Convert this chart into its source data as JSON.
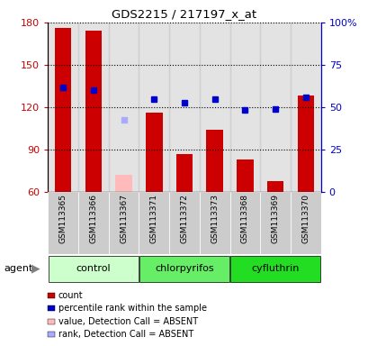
{
  "title": "GDS2215 / 217197_x_at",
  "samples": [
    "GSM113365",
    "GSM113366",
    "GSM113367",
    "GSM113371",
    "GSM113372",
    "GSM113373",
    "GSM113368",
    "GSM113369",
    "GSM113370"
  ],
  "bar_values": [
    176,
    174,
    null,
    116,
    87,
    104,
    83,
    68,
    128
  ],
  "bar_absent": [
    null,
    null,
    72,
    null,
    null,
    null,
    null,
    null,
    null
  ],
  "rank_present": [
    134,
    132,
    null,
    126,
    123,
    126,
    118,
    119,
    127
  ],
  "rank_absent": [
    null,
    null,
    111,
    null,
    null,
    null,
    null,
    null,
    null
  ],
  "ylim_left": [
    60,
    180
  ],
  "ylim_right": [
    0,
    100
  ],
  "yticks_left": [
    60,
    90,
    120,
    150,
    180
  ],
  "ytick_labels_left": [
    "60",
    "90",
    "120",
    "150",
    "180"
  ],
  "yticks_right_vals": [
    60,
    90,
    120,
    150,
    180
  ],
  "yticks_right_labels": [
    "0",
    "25",
    "50",
    "75",
    "100%"
  ],
  "bar_color": "#cc0000",
  "bar_absent_color": "#ffbbbb",
  "rank_present_color": "#0000cc",
  "rank_absent_color": "#aaaaff",
  "group_data": [
    {
      "name": "control",
      "start": 0,
      "end": 2,
      "color": "#ccffcc"
    },
    {
      "name": "chlorpyrifos",
      "start": 3,
      "end": 5,
      "color": "#66ee66"
    },
    {
      "name": "cyfluthrin",
      "start": 6,
      "end": 8,
      "color": "#22dd22"
    }
  ],
  "legend_items": [
    {
      "label": "count",
      "color": "#cc0000"
    },
    {
      "label": "percentile rank within the sample",
      "color": "#0000cc"
    },
    {
      "label": "value, Detection Call = ABSENT",
      "color": "#ffbbbb"
    },
    {
      "label": "rank, Detection Call = ABSENT",
      "color": "#aaaaff"
    }
  ]
}
